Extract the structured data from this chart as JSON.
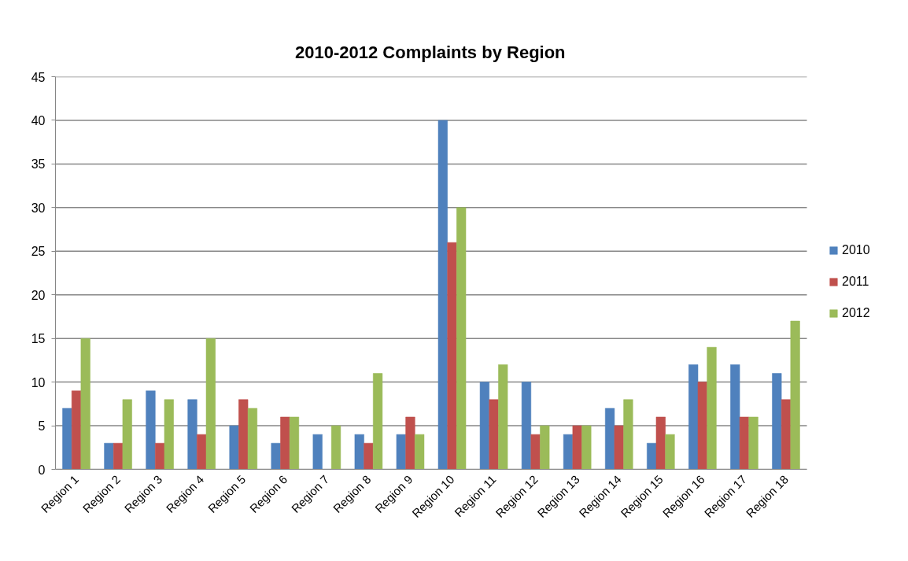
{
  "chart_data": {
    "type": "bar",
    "title": "2010-2012 Complaints by Region",
    "categories": [
      "Region 1",
      "Region 2",
      "Region 3",
      "Region 4",
      "Region 5",
      "Region 6",
      "Region 7",
      "Region 8",
      "Region 9",
      "Region 10",
      "Region 11",
      "Region 12",
      "Region 13",
      "Region 14",
      "Region 15",
      "Region 16",
      "Region 17",
      "Region 18"
    ],
    "series": [
      {
        "name": "2010",
        "color": "#4f81bd",
        "values": [
          7,
          3,
          9,
          8,
          5,
          3,
          4,
          4,
          4,
          40,
          10,
          10,
          4,
          7,
          3,
          12,
          12,
          11
        ]
      },
      {
        "name": "2011",
        "color": "#c0504d",
        "values": [
          9,
          3,
          3,
          4,
          8,
          6,
          null,
          3,
          6,
          26,
          8,
          4,
          5,
          5,
          6,
          10,
          6,
          8
        ]
      },
      {
        "name": "2012",
        "color": "#9bbb59",
        "values": [
          15,
          8,
          8,
          15,
          7,
          6,
          5,
          11,
          4,
          30,
          12,
          5,
          5,
          8,
          4,
          14,
          6,
          17
        ]
      }
    ],
    "ylim": [
      0,
      45
    ],
    "yticks": [
      0,
      5,
      10,
      15,
      20,
      25,
      30,
      35,
      40,
      45
    ],
    "grid": "y",
    "legend": "right"
  }
}
